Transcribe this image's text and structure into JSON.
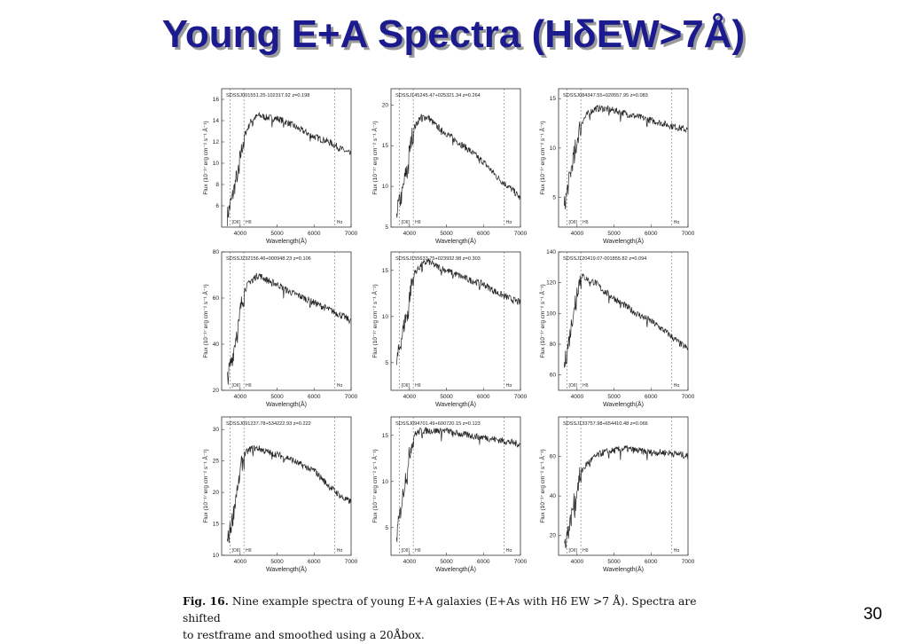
{
  "slide": {
    "title": "Young E+A Spectra (HδEW>7Å)",
    "page_number": "30"
  },
  "caption": {
    "figure_label": "Fig. 16.",
    "line1": "Nine example spectra of young E+A galaxies (E+As with Hδ EW >7 Å). Spectra are shifted",
    "line2": "to restframe and smoothed using a 20Åbox."
  },
  "colors": {
    "title": "#1b1b8f",
    "title_shadow": "#9a9a9a",
    "spectrum": "#222222",
    "axes": "#333333"
  },
  "chart_data": [
    {
      "type": "line",
      "name": "SDSSJ001551.25-102317.92 z=0.198",
      "xlabel": "Wavelength(Å)",
      "ylabel": "Flux (10⁻¹⁷ erg cm⁻² s⁻¹ Å⁻¹)",
      "xlim": [
        3500,
        7000
      ],
      "ylim": [
        4,
        17
      ],
      "xticks": [
        4000,
        5000,
        6000,
        7000
      ],
      "yticks": [
        6,
        8,
        10,
        12,
        14,
        16
      ],
      "line_markers": [
        3727,
        4102,
        6563
      ],
      "line_labels": [
        "[OII]",
        "Hδ",
        "Hα"
      ],
      "x": [
        3650,
        3800,
        3950,
        4100,
        4300,
        4500,
        4700,
        5000,
        5300,
        5600,
        6000,
        6400,
        6800,
        7000
      ],
      "y": [
        5,
        7,
        9.5,
        12.5,
        14,
        14.5,
        14.3,
        14.2,
        13.8,
        13.2,
        12.5,
        12,
        11.2,
        10.8
      ]
    },
    {
      "type": "line",
      "name": "SDSSJ145245.47+025321.34 z=0.264",
      "xlabel": "Wavelength(Å)",
      "ylabel": "Flux (10⁻¹⁷ erg cm⁻² s⁻¹ Å⁻¹)",
      "xlim": [
        3500,
        7000
      ],
      "ylim": [
        5,
        22
      ],
      "xticks": [
        4000,
        5000,
        6000,
        7000
      ],
      "yticks": [
        5,
        10,
        15,
        20
      ],
      "line_markers": [
        3727,
        4102,
        6563
      ],
      "line_labels": [
        "[OII]",
        "Hδ",
        "Hα"
      ],
      "x": [
        3650,
        3800,
        3950,
        4100,
        4300,
        4500,
        4700,
        5000,
        5300,
        5600,
        6000,
        6400,
        6800,
        7000
      ],
      "y": [
        7,
        9,
        13,
        17,
        18.5,
        18.5,
        17.5,
        16.5,
        15.5,
        14.5,
        13,
        11,
        9.5,
        8.5
      ]
    },
    {
      "type": "line",
      "name": "SDSSJ084347.55+020557.95 z=0.083",
      "xlabel": "Wavelength(Å)",
      "ylabel": "Flux (10⁻¹⁷ erg cm⁻² s⁻¹ Å⁻¹)",
      "xlim": [
        3500,
        7000
      ],
      "ylim": [
        2,
        16
      ],
      "xticks": [
        4000,
        5000,
        6000,
        7000
      ],
      "yticks": [
        5,
        10,
        15
      ],
      "line_markers": [
        3727,
        4102,
        6563
      ],
      "line_labels": [
        "[OII]",
        "Hδ",
        "Hα"
      ],
      "x": [
        3650,
        3800,
        3950,
        4100,
        4300,
        4500,
        4700,
        5000,
        5300,
        5600,
        6000,
        6400,
        6800,
        7000
      ],
      "y": [
        4,
        7,
        10,
        12.5,
        13.5,
        14,
        14,
        13.8,
        13.5,
        13.2,
        12.8,
        12.4,
        12,
        11.8
      ]
    },
    {
      "type": "line",
      "name": "SDSSJ232156.46+000948.23 z=0.106",
      "xlabel": "Wavelength(Å)",
      "ylabel": "Flux (10⁻¹⁷ erg cm⁻² s⁻¹ Å⁻¹)",
      "xlim": [
        3500,
        7000
      ],
      "ylim": [
        20,
        80
      ],
      "xticks": [
        4000,
        5000,
        6000,
        7000
      ],
      "yticks": [
        20,
        40,
        60,
        80
      ],
      "line_markers": [
        3727,
        4102,
        6563
      ],
      "line_labels": [
        "[OII]",
        "Hδ",
        "Hα"
      ],
      "x": [
        3650,
        3800,
        3950,
        4100,
        4300,
        4500,
        4700,
        5000,
        5300,
        5600,
        6000,
        6400,
        6800,
        7000
      ],
      "y": [
        25,
        35,
        50,
        63,
        68,
        70,
        68,
        66,
        63,
        61,
        58,
        55,
        52,
        50
      ]
    },
    {
      "type": "line",
      "name": "SDSSJ155633.75+023932.98 z=0.303",
      "xlabel": "Wavelength(Å)",
      "ylabel": "Flux (10⁻¹⁷ erg cm⁻² s⁻¹ Å⁻¹)",
      "xlim": [
        3500,
        7000
      ],
      "ylim": [
        2,
        17
      ],
      "xticks": [
        4000,
        5000,
        6000,
        7000
      ],
      "yticks": [
        5,
        10,
        15
      ],
      "line_markers": [
        3727,
        4102,
        6563
      ],
      "line_labels": [
        "[OII]",
        "Hδ",
        "Hα"
      ],
      "x": [
        3650,
        3800,
        3950,
        4100,
        4300,
        4500,
        4700,
        5000,
        5300,
        5600,
        6000,
        6400,
        6800,
        7000
      ],
      "y": [
        5,
        8,
        11,
        14.5,
        15.5,
        16,
        15.5,
        15,
        14.5,
        14,
        13.5,
        12.5,
        11.8,
        11.5
      ]
    },
    {
      "type": "line",
      "name": "SDSSJ120419.07-001855.82 z=0.094",
      "xlabel": "Wavelength(Å)",
      "ylabel": "Flux (10⁻¹⁷ erg cm⁻² s⁻¹ Å⁻¹)",
      "xlim": [
        3500,
        7000
      ],
      "ylim": [
        50,
        140
      ],
      "xticks": [
        4000,
        5000,
        6000,
        7000
      ],
      "yticks": [
        60,
        80,
        100,
        120,
        140
      ],
      "line_markers": [
        3727,
        4102,
        6563
      ],
      "line_labels": [
        "[OII]",
        "Hδ",
        "Hα"
      ],
      "x": [
        3650,
        3800,
        3950,
        4100,
        4300,
        4500,
        4700,
        5000,
        5300,
        5600,
        6000,
        6400,
        6800,
        7000
      ],
      "y": [
        65,
        85,
        110,
        125,
        122,
        120,
        115,
        110,
        105,
        100,
        95,
        88,
        80,
        77
      ]
    },
    {
      "type": "line",
      "name": "SDSSJ091237.78+534222.93 z=0.222",
      "xlabel": "Wavelength(Å)",
      "ylabel": "Flux (10⁻¹⁷ erg cm⁻² s⁻¹ Å⁻¹)",
      "xlim": [
        3500,
        7000
      ],
      "ylim": [
        10,
        32
      ],
      "xticks": [
        4000,
        5000,
        6000,
        7000
      ],
      "yticks": [
        10,
        15,
        20,
        25,
        30
      ],
      "line_markers": [
        3727,
        4102,
        6563
      ],
      "line_labels": [
        "[OII]",
        "Hδ",
        "Hα"
      ],
      "x": [
        3650,
        3800,
        3950,
        4100,
        4300,
        4500,
        4700,
        5000,
        5300,
        5600,
        6000,
        6400,
        6800,
        7000
      ],
      "y": [
        12,
        16,
        22,
        26,
        27,
        27,
        26.5,
        26,
        25.5,
        24.5,
        23.5,
        21,
        19,
        18.5
      ]
    },
    {
      "type": "line",
      "name": "SDSSJ094701.49+600720.15 z=0.123",
      "xlabel": "Wavelength(Å)",
      "ylabel": "Flux (10⁻¹⁷ erg cm⁻² s⁻¹ Å⁻¹)",
      "xlim": [
        3500,
        7000
      ],
      "ylim": [
        2,
        17
      ],
      "xticks": [
        4000,
        5000,
        6000,
        7000
      ],
      "yticks": [
        5,
        10,
        15
      ],
      "line_markers": [
        3727,
        4102,
        6563
      ],
      "line_labels": [
        "[OII]",
        "Hδ",
        "Hα"
      ],
      "x": [
        3650,
        3800,
        3950,
        4100,
        4300,
        4500,
        4700,
        5000,
        5300,
        5600,
        6000,
        6400,
        6800,
        7000
      ],
      "y": [
        4,
        8,
        12,
        15,
        15.5,
        15.5,
        15.5,
        15.5,
        15.2,
        15,
        14.8,
        14.5,
        14.2,
        14
      ]
    },
    {
      "type": "line",
      "name": "SDSSJ133757.98+654410.48 z=0.066",
      "xlabel": "Wavelength(Å)",
      "ylabel": "Flux (10⁻¹⁷ erg cm⁻² s⁻¹ Å⁻¹)",
      "xlim": [
        3500,
        7000
      ],
      "ylim": [
        10,
        80
      ],
      "xticks": [
        4000,
        5000,
        6000,
        7000
      ],
      "yticks": [
        20,
        40,
        60
      ],
      "line_markers": [
        3727,
        4102,
        6563
      ],
      "line_labels": [
        "[OII]",
        "Hδ",
        "Hα"
      ],
      "x": [
        3650,
        3800,
        3950,
        4100,
        4300,
        4500,
        4700,
        5000,
        5300,
        5600,
        6000,
        6400,
        6800,
        7000
      ],
      "y": [
        15,
        25,
        40,
        52,
        57,
        60,
        62,
        63,
        64,
        63,
        62,
        62,
        61,
        60
      ]
    }
  ]
}
